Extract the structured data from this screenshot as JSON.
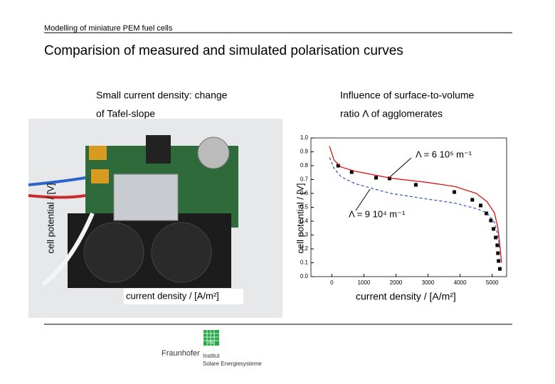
{
  "header": {
    "running_title": "Modelling of miniature PEM fuel cells",
    "title": "Comparision of measured and simulated polarisation curves"
  },
  "left": {
    "caption": [
      "Small current density: change",
      "of Tafel-slope"
    ],
    "ylabel": "cell potential / [V]",
    "xlabel": "current density / [A/m²]"
  },
  "right_caption": [
    "Influence of surface-to-volume",
    "ratio Λ of agglomerates"
  ],
  "chart_data": {
    "type": "line",
    "xlabel": "current density / [A/m²]",
    "ylabel": "cell potential / [V]",
    "xlim": [
      -650,
      5450
    ],
    "ylim": [
      0,
      1
    ],
    "xticks": [
      0,
      1000,
      2000,
      3000,
      4000,
      5000
    ],
    "yticks": [
      {
        "value": 0,
        "label": "0.0"
      },
      {
        "value": 0.1,
        "label": "0.1"
      },
      {
        "value": 0.2,
        "label": "0.2"
      },
      {
        "value": 0.3,
        "label": "0.3"
      },
      {
        "value": 0.4,
        "label": "0.4"
      },
      {
        "value": 0.5,
        "label": "0.5"
      },
      {
        "value": 0.6,
        "label": "0.6"
      },
      {
        "value": 0.7,
        "label": "0.7"
      },
      {
        "value": 0.8,
        "label": "0.8"
      },
      {
        "value": 0.9,
        "label": "0.9"
      },
      {
        "value": 1,
        "label": "1.0"
      }
    ],
    "annotations": [
      {
        "text": "Λ = 6 10⁵ m⁻¹"
      },
      {
        "text": "Λ = 9 10⁴ m⁻¹"
      }
    ],
    "series": [
      {
        "mode": "markers",
        "color": "#000000",
        "x": [
          200,
          620,
          1380,
          1800,
          2620,
          3820,
          4380,
          4640,
          4820,
          4960,
          5040,
          5110,
          5160,
          5180,
          5200,
          5240
        ],
        "values": [
          0.8,
          0.754,
          0.713,
          0.708,
          0.662,
          0.61,
          0.554,
          0.513,
          0.456,
          0.405,
          0.344,
          0.282,
          0.226,
          0.169,
          0.113,
          0.056
        ]
      },
      {
        "mode": "line",
        "color": "#e00000",
        "x": [
          -70,
          70,
          290,
          730,
          1840,
          2960,
          3840,
          4510,
          4840,
          5070,
          5180,
          5240,
          5290
        ],
        "values": [
          0.94,
          0.84,
          0.79,
          0.76,
          0.71,
          0.68,
          0.65,
          0.6,
          0.54,
          0.46,
          0.35,
          0.23,
          0.1
        ]
      },
      {
        "mode": "dashed",
        "color": "#3050c0",
        "x": [
          -70,
          70,
          290,
          730,
          1840,
          2960,
          3840,
          4510,
          4840,
          5070,
          5180,
          5240
        ],
        "values": [
          0.86,
          0.78,
          0.72,
          0.67,
          0.6,
          0.56,
          0.53,
          0.49,
          0.46,
          0.39,
          0.3,
          0.2
        ]
      }
    ]
  },
  "footer": {
    "ise": "ISE",
    "brand": "Fraunhofer",
    "institute": [
      "Institut",
      "Solare Energiesysteme"
    ]
  }
}
